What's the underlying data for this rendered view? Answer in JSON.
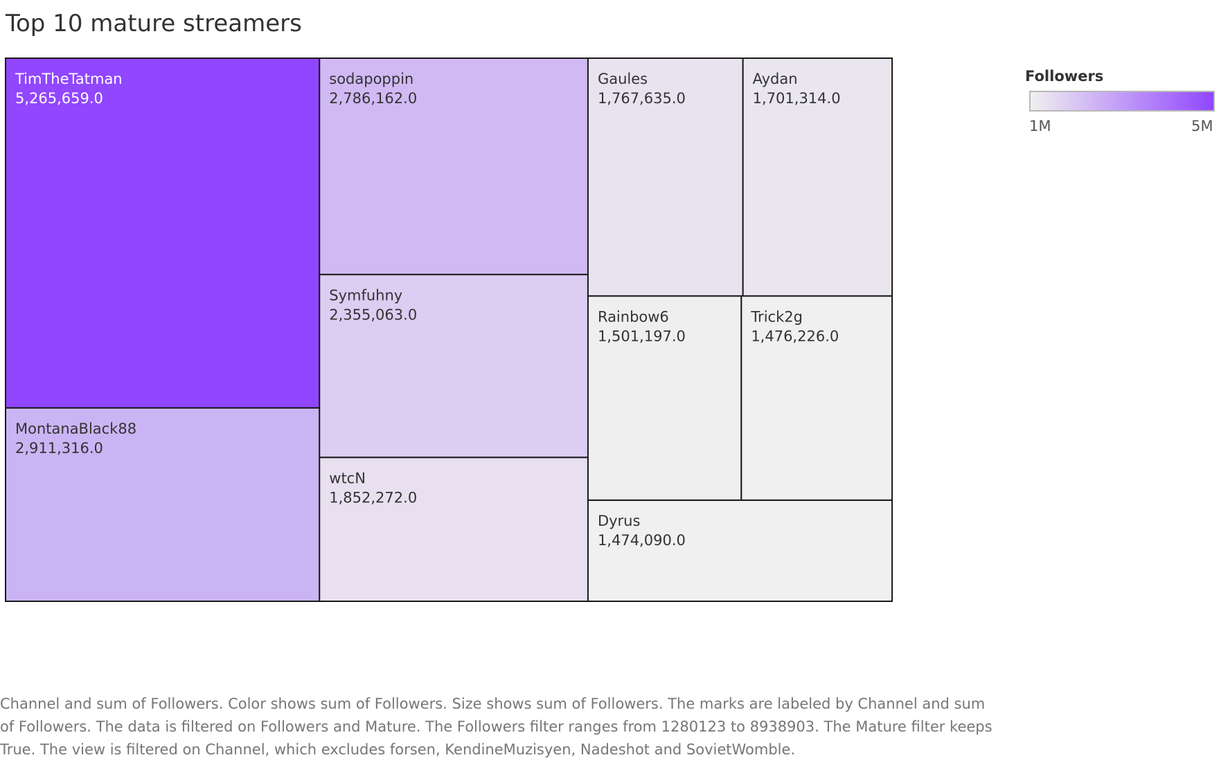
{
  "title": "Top 10 mature streamers",
  "legend": {
    "title": "Followers",
    "min_label": "1M",
    "max_label": "5M",
    "color_low": "#f0f0f0",
    "color_high": "#9146ff"
  },
  "caption": "Channel and sum of Followers.  Color shows sum of Followers.  Size shows sum of Followers.  The marks are labeled by Channel and sum of Followers. The data is filtered on Followers and Mature. The Followers filter ranges from 1280123 to 8938903. The Mature filter keeps True. The view is filtered on Channel, which excludes forsen, KendineMuzisyen, Nadeshot and SovietWomble.",
  "chart_data": {
    "type": "treemap",
    "title": "Top 10 mature streamers",
    "size_measure": "Followers",
    "color_measure": "Followers",
    "color_range": [
      1000000,
      5000000
    ],
    "items": [
      {
        "label": "TimTheTatman",
        "value": 5265659,
        "display": "5,265,659.0",
        "color": "#9146ff"
      },
      {
        "label": "MontanaBlack88",
        "value": 2911316,
        "display": "2,911,316.0",
        "color": "#cbb4f4"
      },
      {
        "label": "sodapoppin",
        "value": 2786162,
        "display": "2,786,162.0",
        "color": "#d1b9f4"
      },
      {
        "label": "Symfuhny",
        "value": 2355063,
        "display": "2,355,063.0",
        "color": "#dccdf2"
      },
      {
        "label": "wtcN",
        "value": 1852272,
        "display": "1,852,272.0",
        "color": "#e8e0f0"
      },
      {
        "label": "Gaules",
        "value": 1767635,
        "display": "1,767,635.0",
        "color": "#e9e3ef"
      },
      {
        "label": "Aydan",
        "value": 1701314,
        "display": "1,701,314.0",
        "color": "#eae6ef"
      },
      {
        "label": "Rainbow6",
        "value": 1501197,
        "display": "1,501,197.0",
        "color": "#efefef"
      },
      {
        "label": "Trick2g",
        "value": 1476226,
        "display": "1,476,226.0",
        "color": "#f0f0f0"
      },
      {
        "label": "Dyrus",
        "value": 1474090,
        "display": "1,474,090.0",
        "color": "#f0f0f0"
      }
    ]
  }
}
